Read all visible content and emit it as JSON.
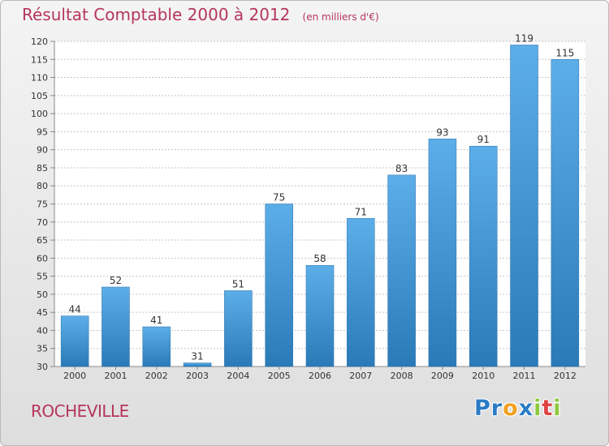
{
  "title": "Résultat Comptable 2000 à 2012",
  "subtitle": "(en milliers d'€)",
  "commune": "ROCHEVILLE",
  "logo": {
    "text": "Proxiti",
    "letters": [
      {
        "ch": "P",
        "color": "#2b7bc4"
      },
      {
        "ch": "r",
        "color": "#2b7bc4"
      },
      {
        "ch": "o",
        "color": "#f0a020"
      },
      {
        "ch": "x",
        "color": "#2b7bc4"
      },
      {
        "ch": "i",
        "color": "#8cc83c"
      },
      {
        "ch": "t",
        "color": "#e04040"
      },
      {
        "ch": "i",
        "color": "#8cc83c"
      }
    ]
  },
  "colors": {
    "title": "#b5365a",
    "bar_top": "#5caee8",
    "bar_bottom": "#2a7ab8",
    "grid": "#c6c6c6",
    "axis_text": "#333333"
  },
  "chart_data": {
    "type": "bar",
    "title": "Résultat Comptable 2000 à 2012",
    "xlabel": "",
    "ylabel": "",
    "categories": [
      "2000",
      "2001",
      "2002",
      "2003",
      "2004",
      "2005",
      "2006",
      "2007",
      "2008",
      "2009",
      "2010",
      "2011",
      "2012"
    ],
    "values": [
      44,
      52,
      41,
      31,
      51,
      75,
      58,
      71,
      83,
      93,
      91,
      119,
      115
    ],
    "ylim": [
      30,
      120
    ],
    "yticks": [
      30,
      35,
      40,
      45,
      50,
      55,
      60,
      65,
      70,
      75,
      80,
      85,
      90,
      95,
      100,
      105,
      110,
      115,
      120
    ],
    "grid": true
  }
}
